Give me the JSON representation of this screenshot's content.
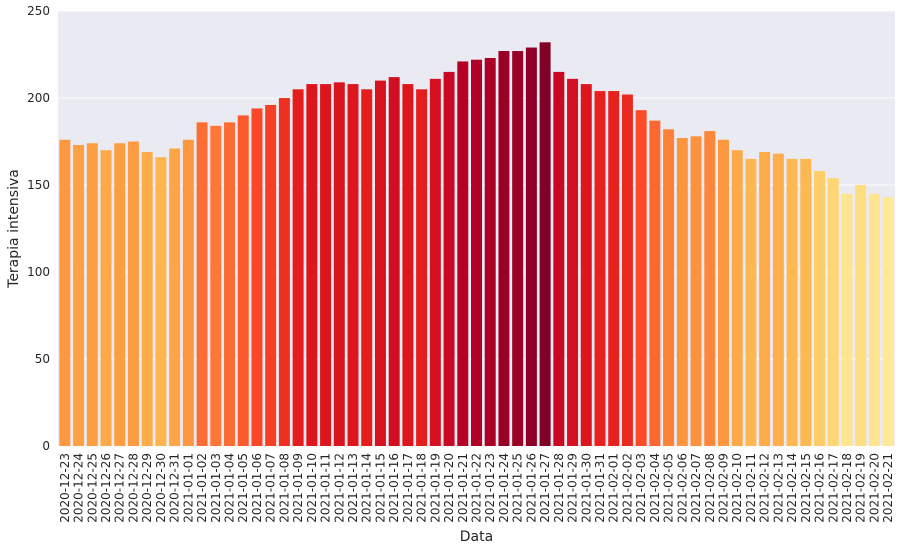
{
  "chart_data": {
    "type": "bar",
    "xlabel": "Data",
    "ylabel": "Terapia intensiva",
    "ylim": [
      0,
      250
    ],
    "yticks": [
      0,
      50,
      100,
      150,
      200,
      250
    ],
    "grid": true,
    "categories": [
      "2020-12-23",
      "2020-12-24",
      "2020-12-25",
      "2020-12-26",
      "2020-12-27",
      "2020-12-28",
      "2020-12-29",
      "2020-12-30",
      "2020-12-31",
      "2021-01-01",
      "2021-01-02",
      "2021-01-03",
      "2021-01-04",
      "2021-01-05",
      "2021-01-06",
      "2021-01-07",
      "2021-01-08",
      "2021-01-09",
      "2021-01-10",
      "2021-01-11",
      "2021-01-12",
      "2021-01-13",
      "2021-01-14",
      "2021-01-15",
      "2021-01-16",
      "2021-01-17",
      "2021-01-18",
      "2021-01-19",
      "2021-01-20",
      "2021-01-21",
      "2021-01-22",
      "2021-01-23",
      "2021-01-24",
      "2021-01-25",
      "2021-01-26",
      "2021-01-27",
      "2021-01-28",
      "2021-01-29",
      "2021-01-30",
      "2021-01-31",
      "2021-02-01",
      "2021-02-02",
      "2021-02-03",
      "2021-02-04",
      "2021-02-05",
      "2021-02-06",
      "2021-02-07",
      "2021-02-08",
      "2021-02-09",
      "2021-02-10",
      "2021-02-11",
      "2021-02-12",
      "2021-02-13",
      "2021-02-14",
      "2021-02-15",
      "2021-02-16",
      "2021-02-17",
      "2021-02-18",
      "2021-02-19",
      "2021-02-20",
      "2021-02-21"
    ],
    "values": [
      176,
      173,
      174,
      170,
      174,
      175,
      169,
      166,
      171,
      176,
      186,
      184,
      186,
      190,
      194,
      196,
      200,
      205,
      208,
      208,
      209,
      208,
      205,
      210,
      212,
      208,
      205,
      211,
      215,
      221,
      222,
      223,
      227,
      227,
      229,
      232,
      215,
      211,
      208,
      204,
      204,
      202,
      193,
      187,
      182,
      177,
      178,
      181,
      176,
      170,
      165,
      169,
      168,
      165,
      165,
      158,
      154,
      145,
      150,
      145,
      143
    ],
    "colors": {
      "plot_background": "#eaeaf2",
      "grid": "#ffffff",
      "palette": "YlOrRd (colored by value)"
    }
  }
}
